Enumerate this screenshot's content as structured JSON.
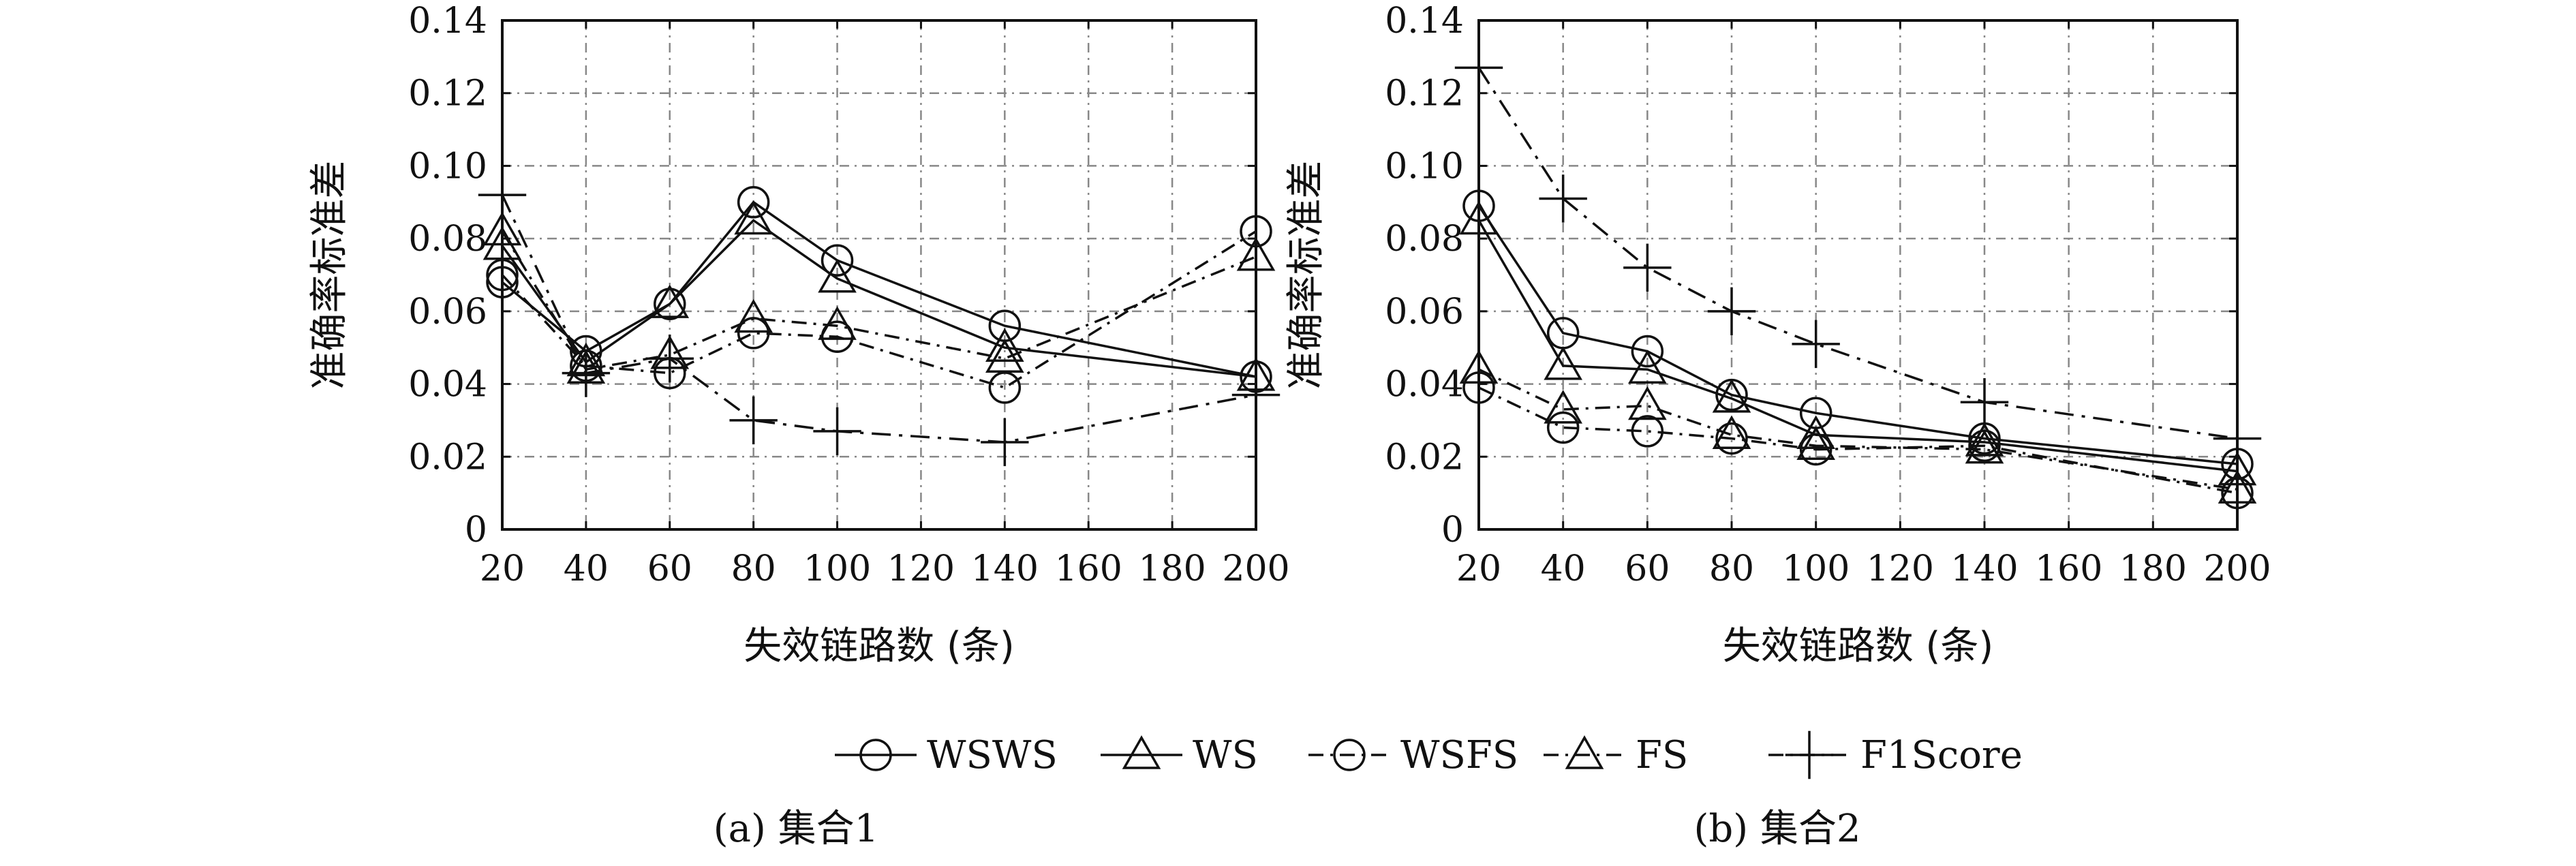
{
  "chart_data": [
    {
      "type": "line",
      "caption": "(a) 集合1",
      "xlabel": "失效链路数 (条)",
      "ylabel": "准确率标准差",
      "x_ticks": [
        "20",
        "40",
        "60",
        "80",
        "100",
        "120",
        "140",
        "160",
        "180",
        "200"
      ],
      "y_ticks": [
        "0",
        "0.02",
        "0.04",
        "0.06",
        "0.08",
        "0.10",
        "0.12",
        "0.14"
      ],
      "xlim": [
        20,
        200
      ],
      "ylim": [
        0,
        0.14
      ],
      "grid": true,
      "x": [
        20,
        40,
        60,
        80,
        100,
        140,
        200
      ],
      "series": [
        {
          "name": "WSWS",
          "values": [
            0.068,
            0.049,
            0.062,
            0.09,
            0.074,
            0.056,
            0.042
          ]
        },
        {
          "name": "WS",
          "values": [
            0.078,
            0.046,
            0.062,
            0.085,
            0.069,
            0.05,
            0.042
          ]
        },
        {
          "name": "WSFS",
          "values": [
            0.07,
            0.045,
            0.043,
            0.054,
            0.053,
            0.039,
            0.082
          ]
        },
        {
          "name": "FS",
          "values": [
            0.082,
            0.044,
            0.048,
            0.058,
            0.056,
            0.047,
            0.075
          ]
        },
        {
          "name": "F1Score",
          "values": [
            0.092,
            0.043,
            0.047,
            0.03,
            0.027,
            0.024,
            0.037
          ]
        }
      ]
    },
    {
      "type": "line",
      "caption": "(b) 集合2",
      "xlabel": "失效链路数 (条)",
      "ylabel": "准确率标准差",
      "x_ticks": [
        "20",
        "40",
        "60",
        "80",
        "100",
        "120",
        "140",
        "160",
        "180",
        "200"
      ],
      "y_ticks": [
        "0",
        "0.02",
        "0.04",
        "0.06",
        "0.08",
        "0.10",
        "0.12",
        "0.14"
      ],
      "xlim": [
        20,
        200
      ],
      "ylim": [
        0,
        0.14
      ],
      "grid": true,
      "x": [
        20,
        40,
        60,
        80,
        100,
        140,
        200
      ],
      "series": [
        {
          "name": "WSWS",
          "values": [
            0.089,
            0.054,
            0.049,
            0.037,
            0.032,
            0.025,
            0.018
          ]
        },
        {
          "name": "WS",
          "values": [
            0.085,
            0.045,
            0.044,
            0.036,
            0.026,
            0.024,
            0.016
          ]
        },
        {
          "name": "WSFS",
          "values": [
            0.039,
            0.028,
            0.027,
            0.025,
            0.022,
            0.023,
            0.01
          ]
        },
        {
          "name": "FS",
          "values": [
            0.044,
            0.033,
            0.034,
            0.026,
            0.023,
            0.022,
            0.011
          ]
        },
        {
          "name": "F1Score",
          "values": [
            0.127,
            0.091,
            0.072,
            0.06,
            0.051,
            0.035,
            0.025
          ]
        }
      ]
    }
  ],
  "legend": [
    {
      "label": "WSWS",
      "marker": "circle",
      "dash": "solid"
    },
    {
      "label": "WS",
      "marker": "triangle",
      "dash": "solid"
    },
    {
      "label": "WSFS",
      "marker": "circle",
      "dash": "dashdot"
    },
    {
      "label": "FS",
      "marker": "triangle",
      "dash": "dashdot"
    },
    {
      "label": "F1Score",
      "marker": "plus",
      "dash": "dashdot"
    }
  ]
}
